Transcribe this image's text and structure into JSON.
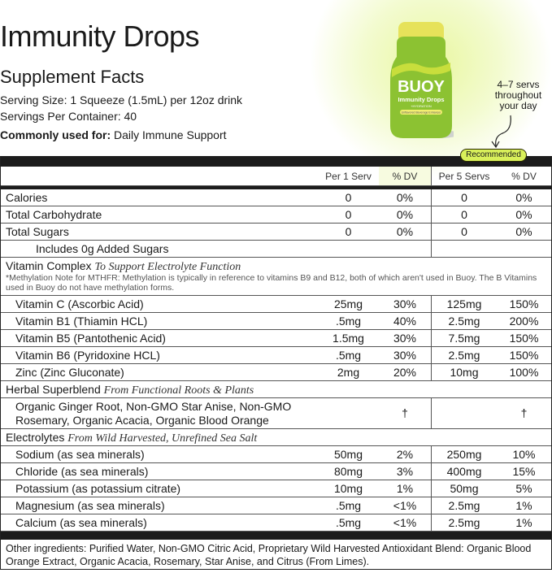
{
  "title": "Immunity Drops",
  "subtitle": "Supplement Facts",
  "serving_size": "Serving Size: 1 Squeeze (1.5mL) per 12oz drink",
  "servings_per_container": "Servings Per Container: 40",
  "commonly_used_label": "Commonly used for:",
  "commonly_used_value": "Daily Immune Support",
  "product": {
    "brand": "BUOY",
    "name": "Immunity Drops",
    "sub": "+HYDRATION",
    "tag": "Unflavored Beverage Enhancer",
    "bottle_color": "#8cc232"
  },
  "note": "4–7 servs throughout your day",
  "recommended": "Recommended",
  "accent": "#d9f05a",
  "headers": [
    "",
    "Per 1 Serv",
    "% DV",
    "Per 5 Servs",
    "% DV"
  ],
  "basic_rows": [
    [
      "Calories",
      "0",
      "0%",
      "0",
      "0%"
    ],
    [
      "Total Carbohydrate",
      "0",
      "0%",
      "0",
      "0%"
    ],
    [
      "Total Sugars",
      "0",
      "0%",
      "0",
      "0%"
    ]
  ],
  "added_sugars": "Includes 0g Added Sugars",
  "vitamin": {
    "title": "Vitamin Complex",
    "tagline": "To Support Electrolyte Function",
    "note": "*Methylation Note for MTHFR: Methylation is typically in reference to vitamins B9 and B12, both of which aren't used in Buoy. The B Vitamins used in Buoy do not have methylation forms.",
    "rows": [
      [
        "Vitamin C (Ascorbic Acid)",
        "25mg",
        "30%",
        "125mg",
        "150%"
      ],
      [
        "Vitamin B1 (Thiamin HCL)",
        ".5mg",
        "40%",
        "2.5mg",
        "200%"
      ],
      [
        "Vitamin B5 (Pantothenic Acid)",
        "1.5mg",
        "30%",
        "7.5mg",
        "150%"
      ],
      [
        "Vitamin B6 (Pyridoxine HCL)",
        ".5mg",
        "30%",
        "2.5mg",
        "150%"
      ],
      [
        "Zinc (Zinc Gluconate)",
        "2mg",
        "20%",
        "10mg",
        "100%"
      ]
    ]
  },
  "herbal": {
    "title": "Herbal Superblend",
    "tagline": "From Functional Roots & Plants",
    "ingredients": "Organic Ginger Root, Non-GMO Star Anise, Non-GMO Rosemary, Organic Acacia, Organic Blood Orange",
    "dv1": "†",
    "dv5": "†"
  },
  "electrolytes": {
    "title": "Electrolytes",
    "tagline": "From Wild Harvested, Unrefined Sea Salt",
    "rows": [
      [
        "Sodium (as sea minerals)",
        "50mg",
        "2%",
        "250mg",
        "10%"
      ],
      [
        "Chloride (as sea minerals)",
        "80mg",
        "3%",
        "400mg",
        "15%"
      ],
      [
        "Potassium (as potassium citrate)",
        "10mg",
        "1%",
        "50mg",
        "5%"
      ],
      [
        "Magnesium (as sea minerals)",
        ".5mg",
        "<1%",
        "2.5mg",
        "1%"
      ],
      [
        "Calcium (as sea minerals)",
        ".5mg",
        "<1%",
        "2.5mg",
        "1%"
      ]
    ]
  },
  "other_ingredients": "Other ingredients: Purified Water, Non-GMO Citric Acid, Proprietary Wild Harvested Antioxidant Blend: Organic Blood Orange Extract, Organic Acacia, Rosemary, Star Anise, and Citrus (From Limes)."
}
